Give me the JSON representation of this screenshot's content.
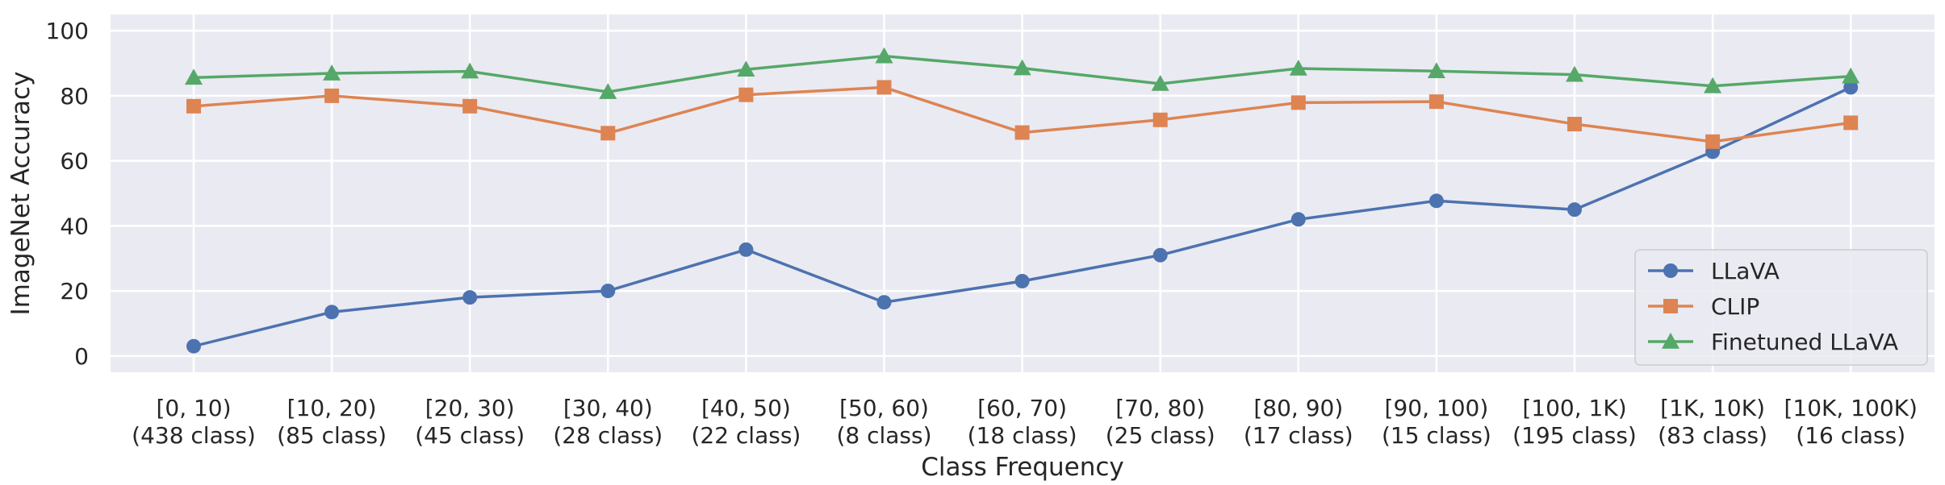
{
  "chart_data": {
    "type": "line",
    "xlabel": "Class Frequency",
    "ylabel": "ImageNet Accuracy",
    "ylim": [
      -5,
      105
    ],
    "yticks": [
      0,
      20,
      40,
      60,
      80,
      100
    ],
    "grid": true,
    "legend_position": "lower-right",
    "categories": [
      {
        "line1": "[0, 10)",
        "line2": "(438 class)"
      },
      {
        "line1": "[10, 20)",
        "line2": "(85 class)"
      },
      {
        "line1": "[20, 30)",
        "line2": "(45 class)"
      },
      {
        "line1": "[30, 40)",
        "line2": "(28 class)"
      },
      {
        "line1": "[40, 50)",
        "line2": "(22 class)"
      },
      {
        "line1": "[50, 60)",
        "line2": "(8 class)"
      },
      {
        "line1": "[60, 70)",
        "line2": "(18 class)"
      },
      {
        "line1": "[70, 80)",
        "line2": "(25 class)"
      },
      {
        "line1": "[80, 90)",
        "line2": "(17 class)"
      },
      {
        "line1": "[90, 100)",
        "line2": "(15 class)"
      },
      {
        "line1": "[100, 1K)",
        "line2": "(195 class)"
      },
      {
        "line1": "[1K, 10K)",
        "line2": "(83 class)"
      },
      {
        "line1": "[10K, 100K)",
        "line2": "(16 class)"
      }
    ],
    "series": [
      {
        "name": "LLaVA",
        "color": "#4c72b0",
        "marker": "circle",
        "values": [
          3.0,
          13.5,
          18.0,
          20.0,
          32.7,
          16.5,
          23.0,
          31.0,
          42.0,
          47.7,
          45.0,
          62.8,
          82.6
        ]
      },
      {
        "name": "CLIP",
        "color": "#dd8452",
        "marker": "square",
        "values": [
          76.8,
          80.0,
          76.8,
          68.5,
          80.3,
          82.6,
          68.7,
          72.6,
          77.9,
          78.2,
          71.3,
          65.9,
          71.7
        ]
      },
      {
        "name": "Finetuned LLaVA",
        "color": "#55a868",
        "marker": "triangle",
        "values": [
          85.6,
          86.9,
          87.5,
          81.2,
          88.1,
          92.2,
          88.5,
          83.7,
          88.4,
          87.6,
          86.5,
          83.0,
          86.0
        ]
      }
    ]
  }
}
